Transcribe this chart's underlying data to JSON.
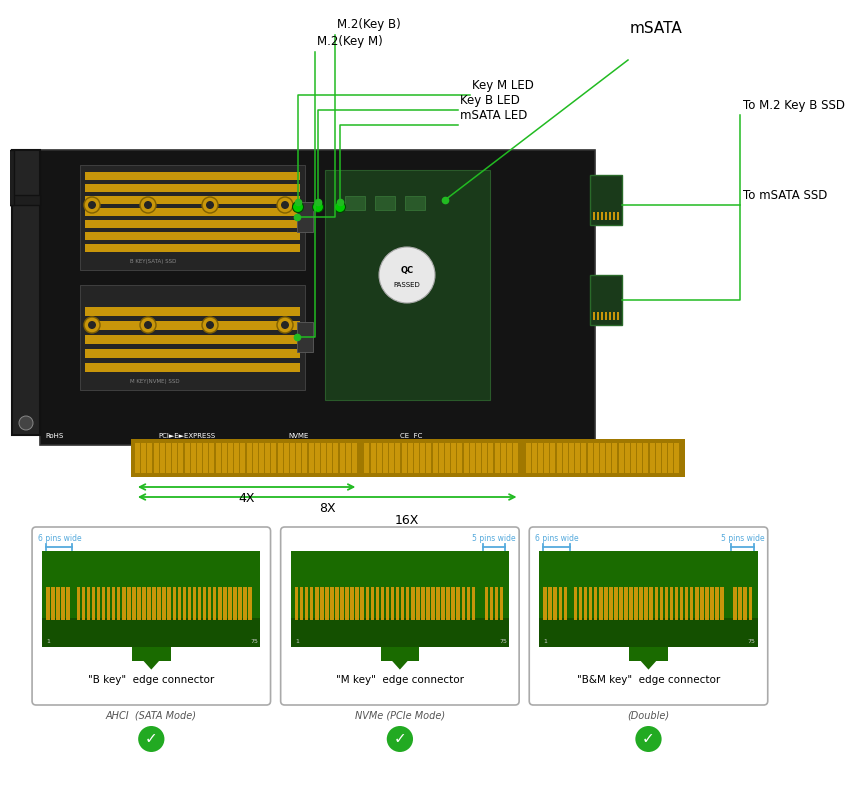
{
  "bg_color": "#ffffff",
  "card_dark": "#141414",
  "card_mid": "#1e1e1e",
  "gold": "#c8960a",
  "green_ann": "#22bb22",
  "green_pcb": "#1a6b00",
  "gold_pin": "#c8960a",
  "bracket_gray": "#2a2a2a",
  "labels": {
    "M2_KeyB": "M.2(Key B)",
    "M2_KeyM": "M.2(Key M)",
    "KeyM_LED": "Key M LED",
    "KeyB_LED": "Key B LED",
    "mSATA": "mSATA",
    "mSATA_LED": "mSATA LED",
    "To_M2_KeyB": "To M.2 Key B SSD",
    "To_mSATA": "To mSATA SSD",
    "dim_4x": "4X",
    "dim_8x": "8X",
    "dim_16x": "16X"
  },
  "connector_boxes": [
    {
      "title": "\"B key\"  edge connector",
      "subtitle": "AHCI  (SATA Mode)",
      "left_label": "6 pins wide",
      "right_label": null,
      "gap_side": "left"
    },
    {
      "title": "\"M key\"  edge connector",
      "subtitle": "NVMe (PCIe Mode)",
      "left_label": null,
      "right_label": "5 pins wide",
      "gap_side": "right"
    },
    {
      "title": "\"B&M key\"  edge connector",
      "subtitle": "(Double)",
      "left_label": "6 pins wide",
      "right_label": "5 pins wide",
      "gap_side": "both"
    }
  ]
}
